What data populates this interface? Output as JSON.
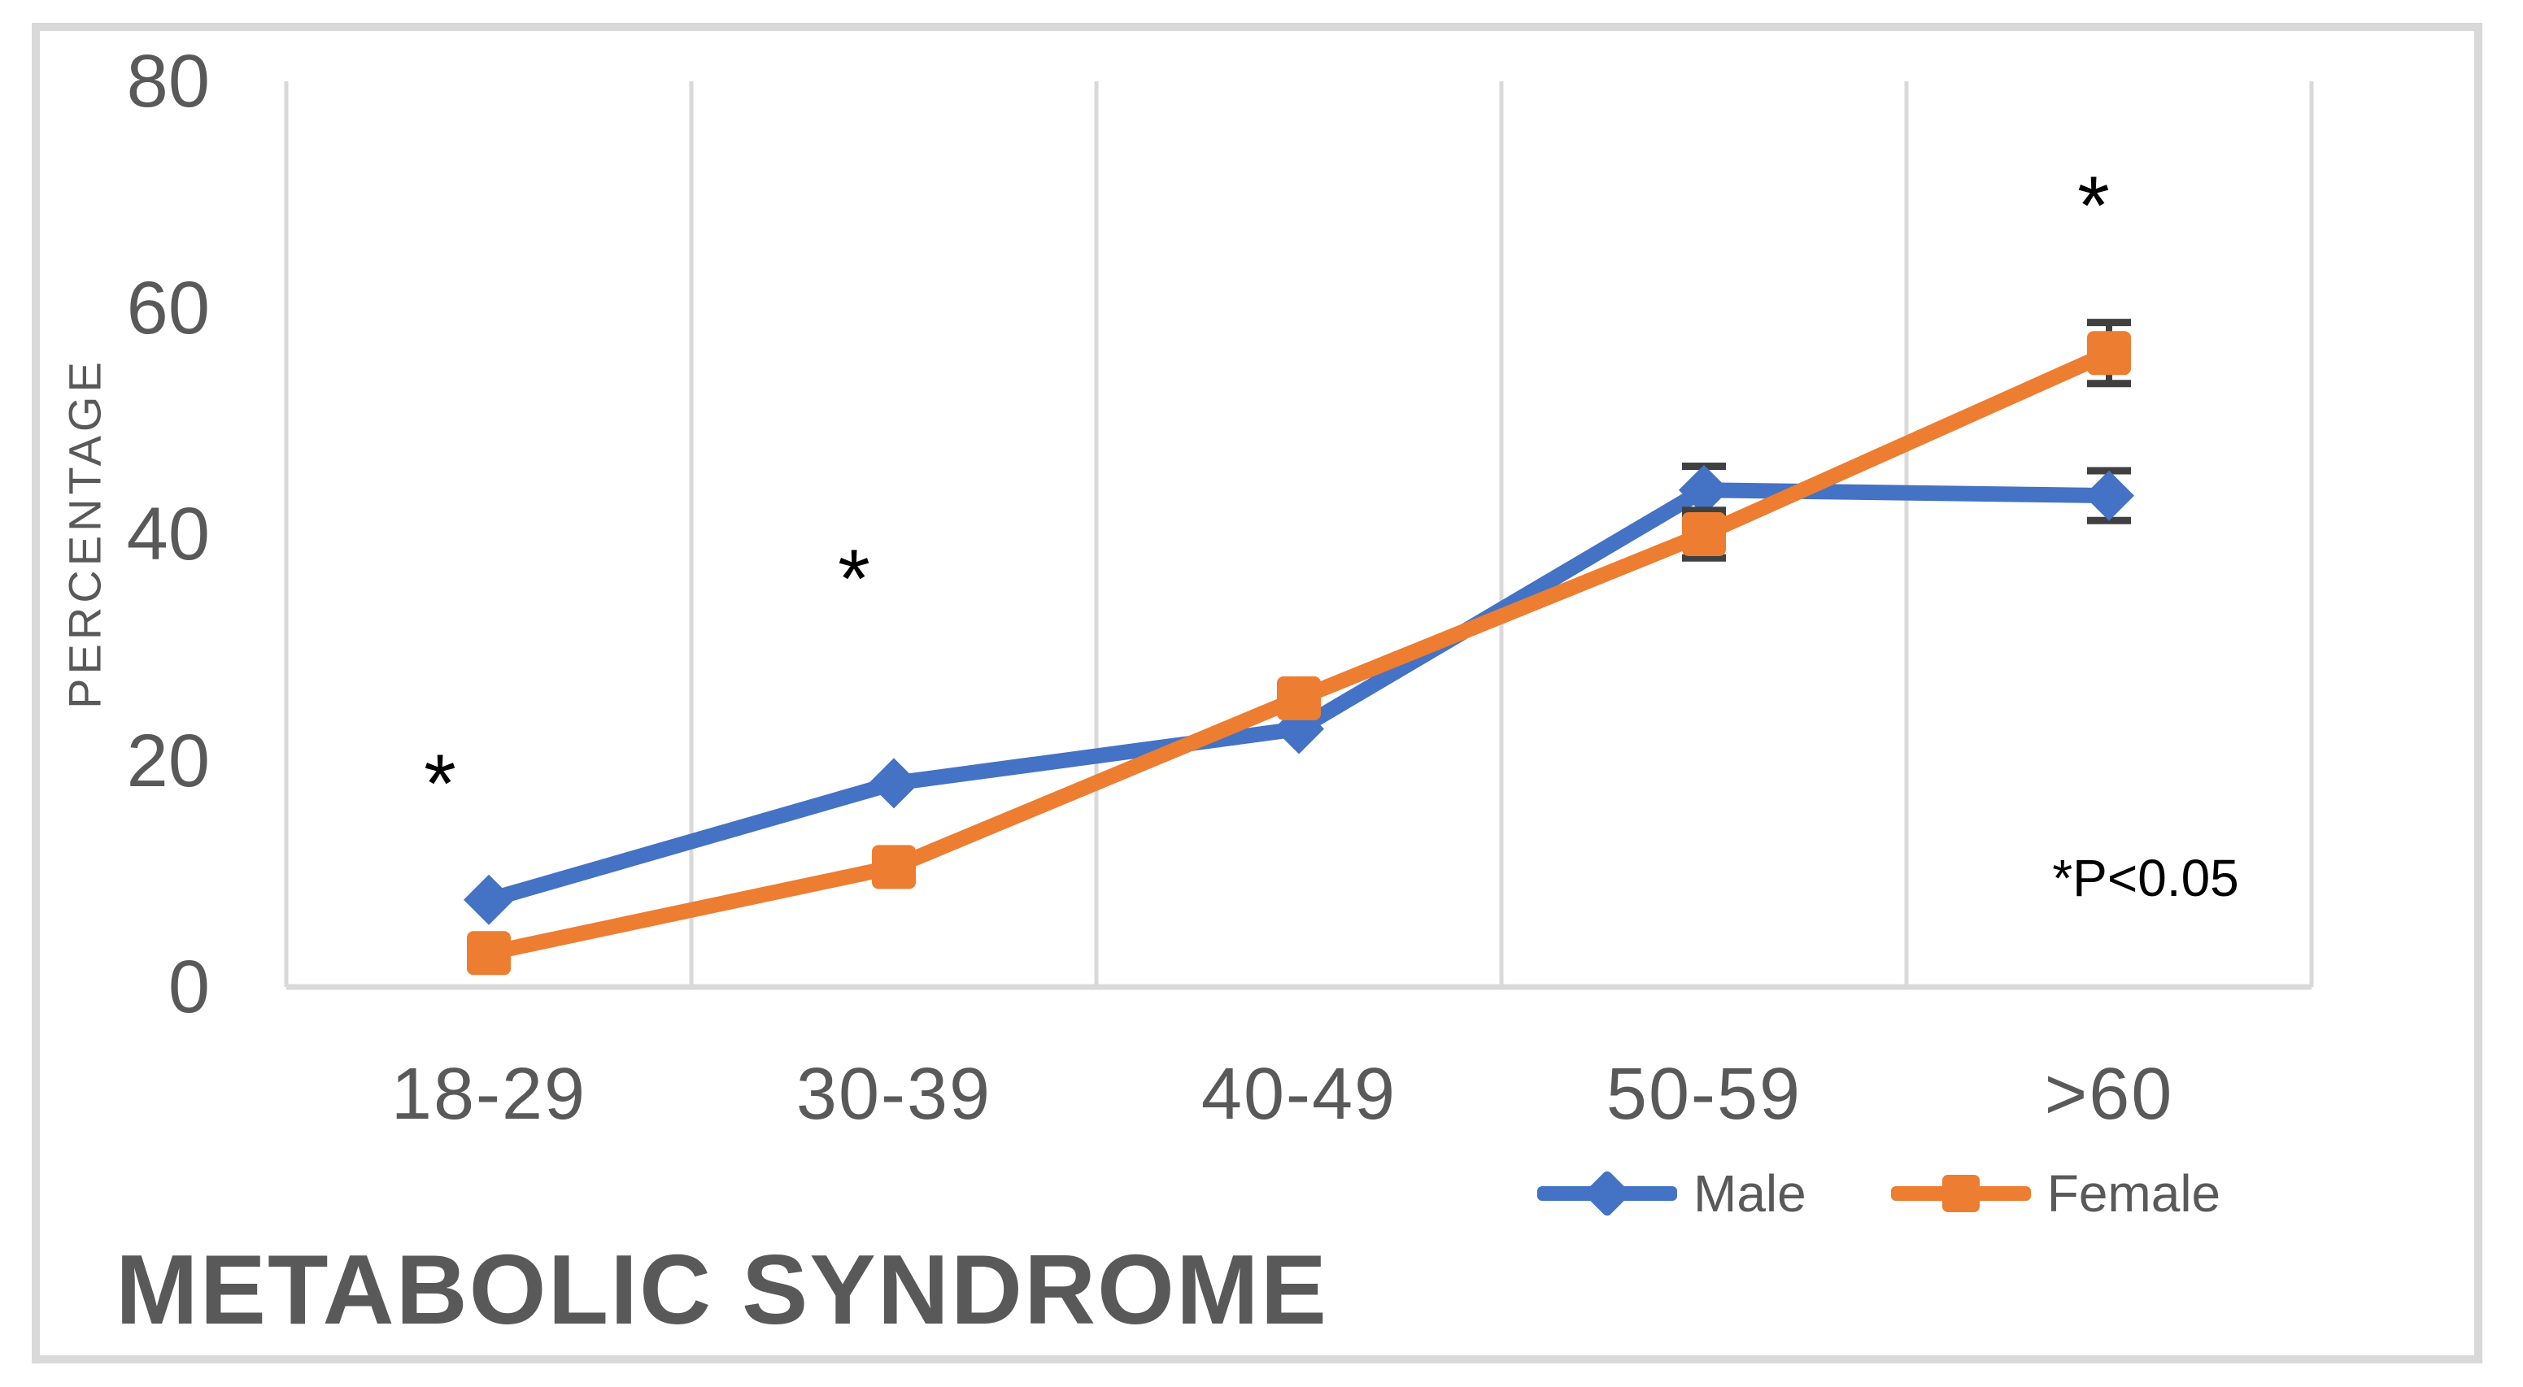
{
  "chart_data": {
    "type": "line",
    "title": "METABOLIC SYNDROME",
    "ylabel": "PERCENTAGE",
    "xlabel": "",
    "categories": [
      "18-29",
      "30-39",
      "40-49",
      "50-59",
      ">60"
    ],
    "series": [
      {
        "name": "Male",
        "color": "#4472C4",
        "marker": "diamond",
        "values": [
          7.7,
          18,
          22.8,
          43.9,
          43.4
        ],
        "error_plus_minus": [
          0,
          0,
          0,
          2.1,
          2.2
        ]
      },
      {
        "name": "Female",
        "color": "#ED7D31",
        "marker": "square",
        "values": [
          3,
          10.6,
          25.5,
          40,
          56
        ],
        "error_plus_minus": [
          0,
          0,
          0,
          2.1,
          2.7
        ]
      }
    ],
    "ylim": [
      0,
      80
    ],
    "yticks": [
      80,
      60,
      40,
      20,
      0
    ],
    "grid": "vertical-major-only",
    "legend_position": "bottom-right-below-axis",
    "annotations": [
      {
        "text": "*",
        "category_index": 0,
        "value": 19.3,
        "dx": -60
      },
      {
        "text": "*",
        "category_index": 1,
        "value": 37.4,
        "dx": -49
      },
      {
        "text": "*",
        "category_index": 4,
        "value": 70.4,
        "dx": -19
      },
      {
        "text": "*P<0.05",
        "category_index": 4,
        "value": 9.6,
        "dx": 45
      }
    ],
    "colors": {
      "gridline": "#D9D9D9",
      "axis_line": "#D9D9D9",
      "tick_text": "#595959",
      "title_text": "#595959",
      "error_bar": "#404040",
      "annotation_text": "#000000"
    }
  }
}
